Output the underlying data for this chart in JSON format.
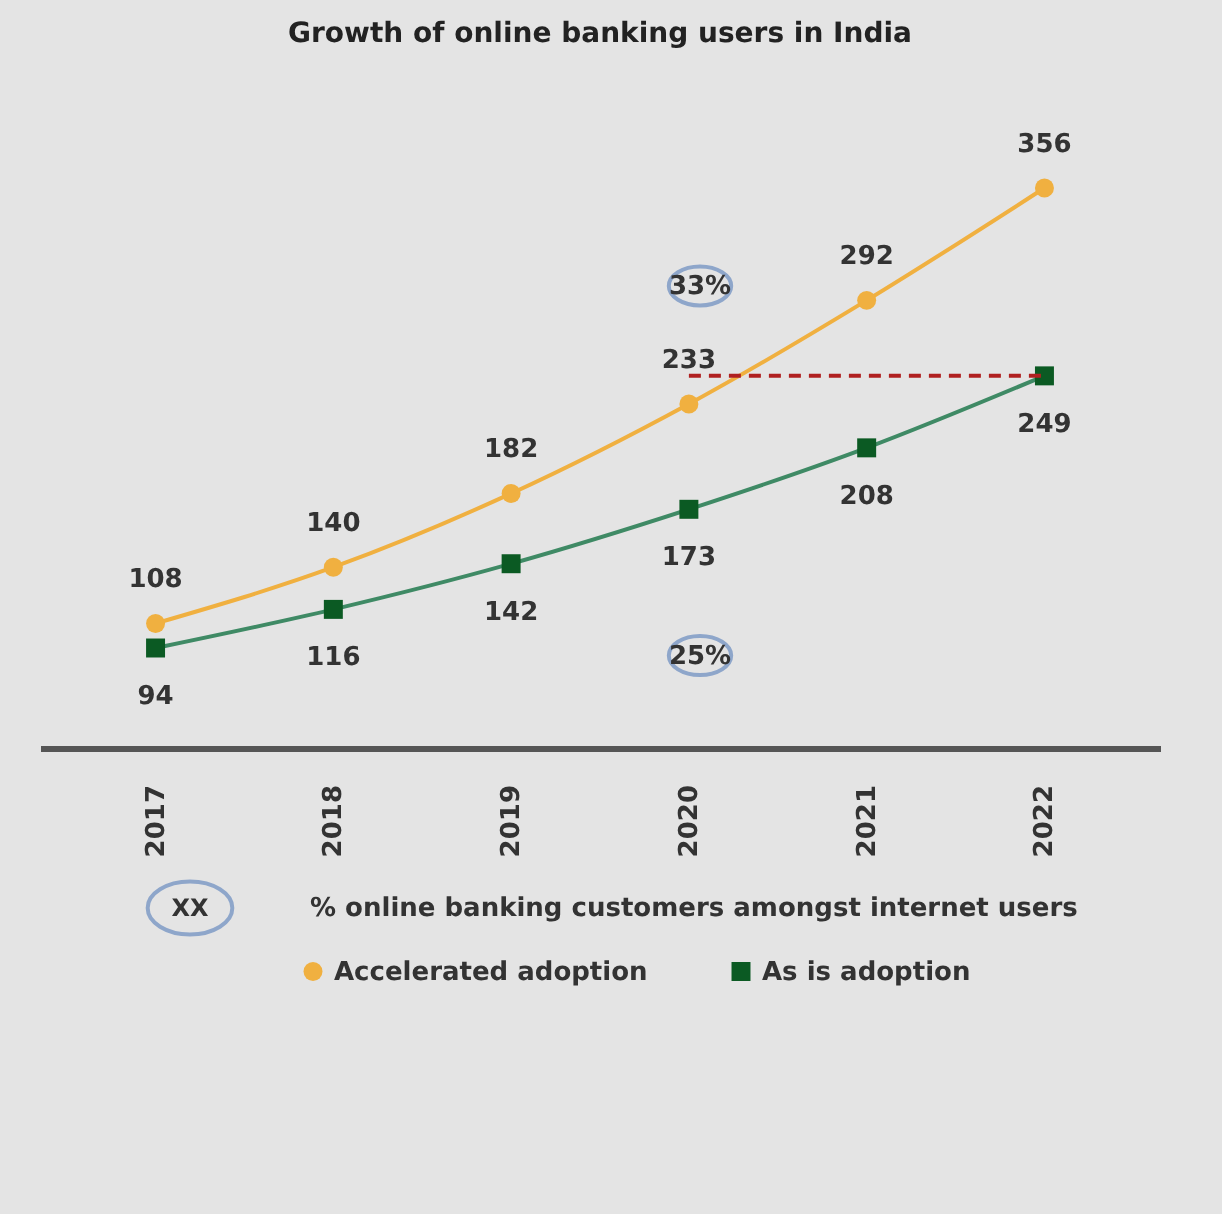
{
  "chart_data": {
    "type": "line",
    "title": "Growth of online banking users in India",
    "categories": [
      "2017",
      "2018",
      "2019",
      "2020",
      "2021",
      "2022"
    ],
    "series": [
      {
        "name": "Accelerated adoption",
        "color": "#f0b040",
        "marker": "circle",
        "values": [
          108,
          140,
          182,
          233,
          292,
          356
        ]
      },
      {
        "name": "As is adoption",
        "color": "#0b5a23",
        "marker": "square",
        "values": [
          94,
          116,
          142,
          173,
          208,
          249
        ]
      }
    ],
    "data_labels": true,
    "legend": "bottom",
    "annotations": [
      "33%",
      "25%",
      "XX",
      "% online banking customers amongst internet users"
    ]
  }
}
